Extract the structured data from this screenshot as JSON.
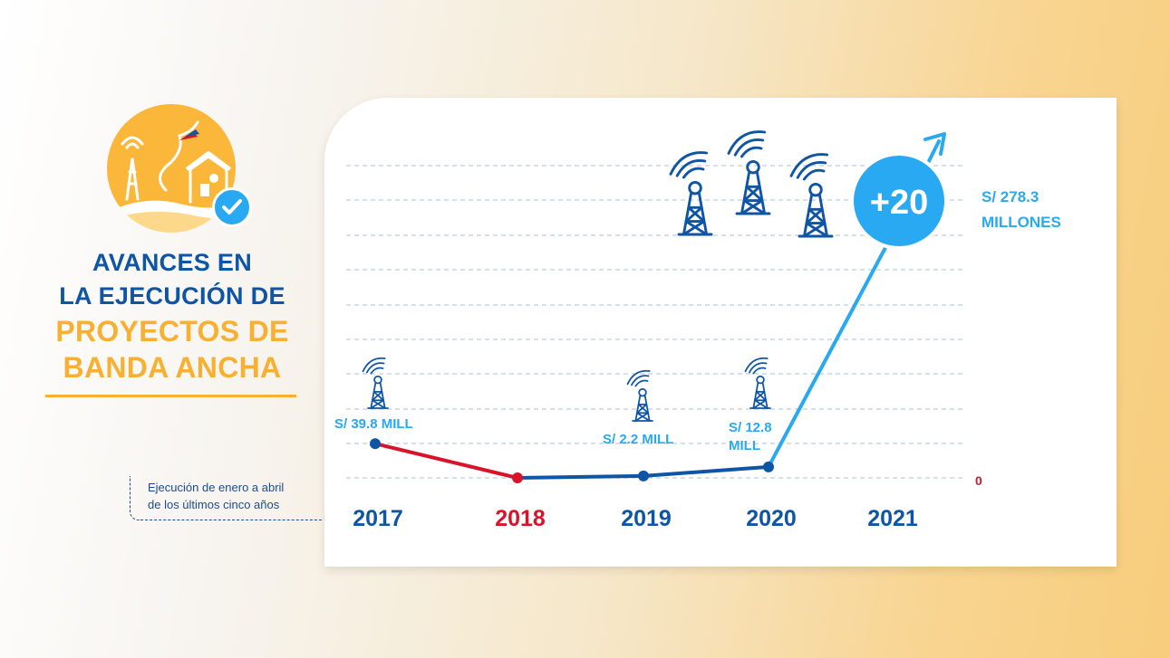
{
  "headline": {
    "line1": "AVANCES EN",
    "line2": "LA EJECUCIÓN DE",
    "line3": "PROYECTOS DE",
    "line4": "BANDA ANCHA"
  },
  "note": {
    "line1": "Ejecución de enero a abril",
    "line2": "de los últimos cinco años"
  },
  "badge": {
    "text": "+20"
  },
  "colors": {
    "navy": "#0f55a5",
    "red": "#d7142a",
    "sky": "#29a9f2",
    "orange": "#f8b032"
  },
  "icons": [
    "antenna-tower-icon",
    "checkmark-icon",
    "arrow-up-right-icon"
  ],
  "chart_data": {
    "type": "line",
    "categories": [
      "2017",
      "2018",
      "2019",
      "2020",
      "2021"
    ],
    "values": [
      39.8,
      0,
      2.2,
      12.8,
      278.3
    ],
    "data_labels": [
      "S/ 39.8 MILL",
      "0",
      "S/ 2.2 MILL",
      "S/ 12.8 MILL",
      "S/ 278.3 MILLONES"
    ],
    "category_colors": [
      "#0f55a5",
      "#d7142a",
      "#0f55a5",
      "#0f55a5",
      "#0f55a5"
    ],
    "segment_colors": [
      "#d7142a",
      "#0f55a5",
      "#0f55a5",
      "#29a9f2"
    ],
    "grid": true
  }
}
